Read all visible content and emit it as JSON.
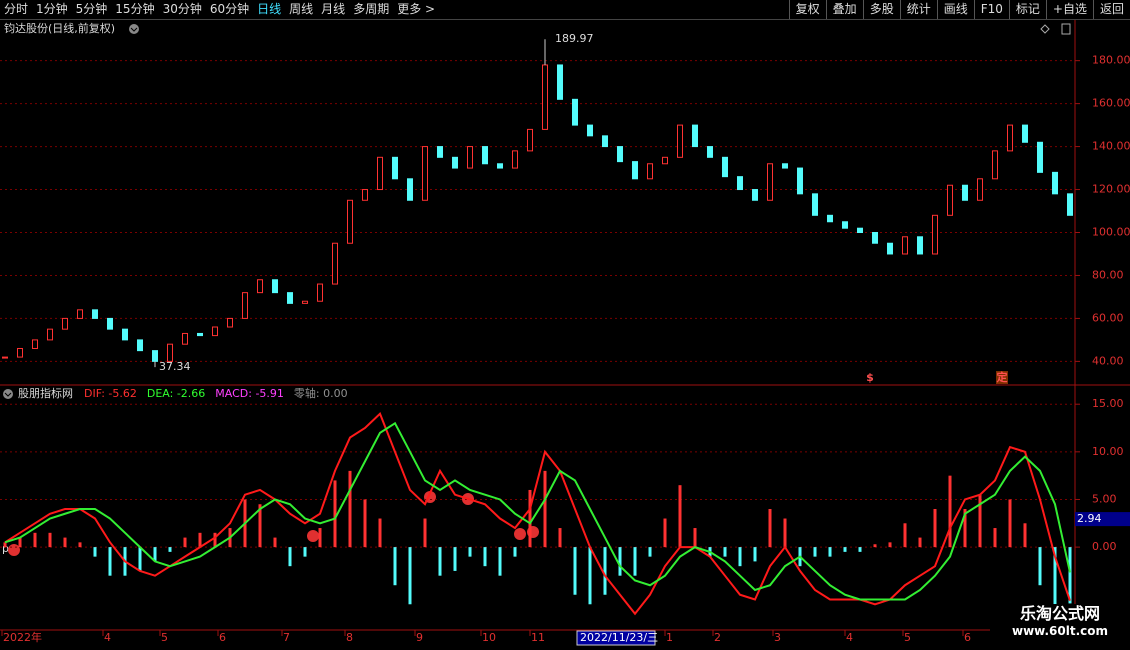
{
  "toolbar": {
    "periods": [
      "分时",
      "1分钟",
      "5分钟",
      "15分钟",
      "30分钟",
      "60分钟",
      "日线",
      "周线",
      "月线",
      "多周期",
      "更多 >"
    ],
    "active": "日线",
    "tools": [
      "复权",
      "叠加",
      "多股",
      "统计",
      "画线",
      "F10",
      "标记",
      "+自选",
      "返回"
    ]
  },
  "chart_data": [
    {
      "type": "candlestick",
      "title": "钧达股份(日线,前复权)",
      "values": [
        42,
        46,
        50,
        55,
        60,
        64,
        60,
        55,
        50,
        45,
        40,
        48,
        53,
        52,
        56,
        60,
        72,
        78,
        72,
        67,
        68,
        76,
        95,
        115,
        120,
        135,
        125,
        115,
        140,
        135,
        130,
        140,
        132,
        130,
        138,
        148,
        178,
        162,
        150,
        145,
        140,
        133,
        125,
        132,
        135,
        150,
        140,
        135,
        126,
        120,
        115,
        132,
        130,
        118,
        108,
        105,
        102,
        100,
        95,
        90,
        98,
        90,
        108,
        122,
        115,
        125,
        138,
        150,
        142,
        128,
        118,
        108
      ],
      "up_color": "#ff3232",
      "down_color": "#54fcfc",
      "ylim": [
        29,
        198
      ],
      "yticks": [
        {
          "value": 40,
          "label": "40.00"
        },
        {
          "value": 60,
          "label": "60.00"
        },
        {
          "value": 80,
          "label": "80.00"
        },
        {
          "value": 100,
          "label": "100.00"
        },
        {
          "value": 120,
          "label": "120.00"
        },
        {
          "value": 140,
          "label": "140.00"
        },
        {
          "value": 160,
          "label": "160.00"
        },
        {
          "value": 180,
          "label": "180.00"
        }
      ],
      "grid": true,
      "max_label": 189.97,
      "min_label": 37.34,
      "markers": [
        "$",
        "定"
      ]
    },
    {
      "type": "macd",
      "title": "股朋指标网",
      "legend": [
        {
          "text": "DIF: -5.62",
          "color": "#ff3030"
        },
        {
          "text": "DEA: -2.66",
          "color": "#30ff30"
        },
        {
          "text": "MACD: -5.91",
          "color": "#ff40ff"
        },
        {
          "text": "零轴: 0.00",
          "color": "#909090"
        }
      ],
      "series": [
        {
          "color": "#ff1a1a",
          "values": [
            0.5,
            1.5,
            2.5,
            3.5,
            4,
            4,
            3,
            0.5,
            -1.5,
            -2.5,
            -3,
            -2,
            -1,
            0,
            1,
            2.5,
            5.5,
            6,
            5,
            3.5,
            2.5,
            3.5,
            8,
            11.5,
            12.5,
            14,
            10,
            6,
            4.5,
            8,
            5.5,
            5,
            4.5,
            3,
            2,
            4,
            10,
            8,
            4,
            0,
            -3,
            -5,
            -7,
            -5,
            -2,
            0,
            0,
            -1,
            -3,
            -5,
            -5.5,
            -2,
            0,
            -2.5,
            -4.5,
            -5.5,
            -5.5,
            -5.5,
            -6,
            -5.5,
            -4,
            -3,
            -2,
            2,
            5,
            5.5,
            7,
            10.5,
            10,
            5,
            -1,
            -5.62
          ]
        },
        {
          "color": "#33ee33",
          "values": [
            0.5,
            1,
            2,
            3,
            3.5,
            4,
            4,
            3,
            1.5,
            0,
            -1.5,
            -2,
            -1.5,
            -1,
            0,
            1,
            2.5,
            4,
            5,
            4.5,
            3,
            2.5,
            3,
            6,
            9,
            12,
            13,
            10,
            7,
            6,
            7,
            6,
            5.5,
            5,
            3.5,
            2.5,
            5,
            8,
            7,
            4,
            1,
            -2,
            -3.5,
            -4,
            -3,
            -1,
            0,
            -0.5,
            -1.5,
            -3,
            -4.5,
            -4,
            -2,
            -1,
            -2.5,
            -4,
            -5,
            -5.5,
            -5.5,
            -5.5,
            -5.5,
            -4.5,
            -3,
            -1,
            3.5,
            4.5,
            5.5,
            8,
            9.5,
            8,
            4.5,
            -2.66
          ]
        }
      ],
      "histogram": {
        "values": [
          0.5,
          1,
          1.5,
          1.5,
          1,
          0.5,
          -1,
          -3,
          -3,
          -2.5,
          -1.5,
          -0.5,
          1,
          1.5,
          1.5,
          2,
          5,
          4.5,
          1,
          -2,
          -1,
          2,
          7,
          8,
          5,
          3,
          -4,
          -6,
          3,
          -3,
          -2.5,
          -1,
          -2,
          -3,
          -1,
          6,
          8,
          2,
          -5,
          -6,
          -5,
          -3,
          -3,
          -1,
          3,
          6.5,
          2,
          -1,
          -1,
          -2,
          -1.5,
          4,
          3,
          -2,
          -1,
          -1,
          -0.5,
          -0.5,
          0.3,
          0.5,
          2.5,
          1,
          4,
          7.5,
          4,
          5.5,
          2,
          5,
          2.5,
          -4,
          -7,
          -5.91
        ],
        "up_color": "#ff3232",
        "down_color": "#54fcfc"
      },
      "ylim": [
        -8.7,
        16.7
      ],
      "yticks": [
        {
          "value": 0,
          "label": "0.00"
        },
        {
          "value": 5,
          "label": "5.00"
        },
        {
          "value": 10,
          "label": "10.00"
        },
        {
          "value": 15,
          "label": "15.00"
        }
      ],
      "grid": true,
      "current_value": 2.94
    }
  ],
  "x_axis": {
    "labels": [
      "2022年",
      "4",
      "5",
      "6",
      "7",
      "8",
      "9",
      "10",
      "11",
      "2022/11/23/三",
      "1",
      "2",
      "3",
      "4",
      "5",
      "6"
    ],
    "highlight": 9
  },
  "watermark": {
    "name": "乐淘公式网",
    "url": "www.60lt.com"
  }
}
